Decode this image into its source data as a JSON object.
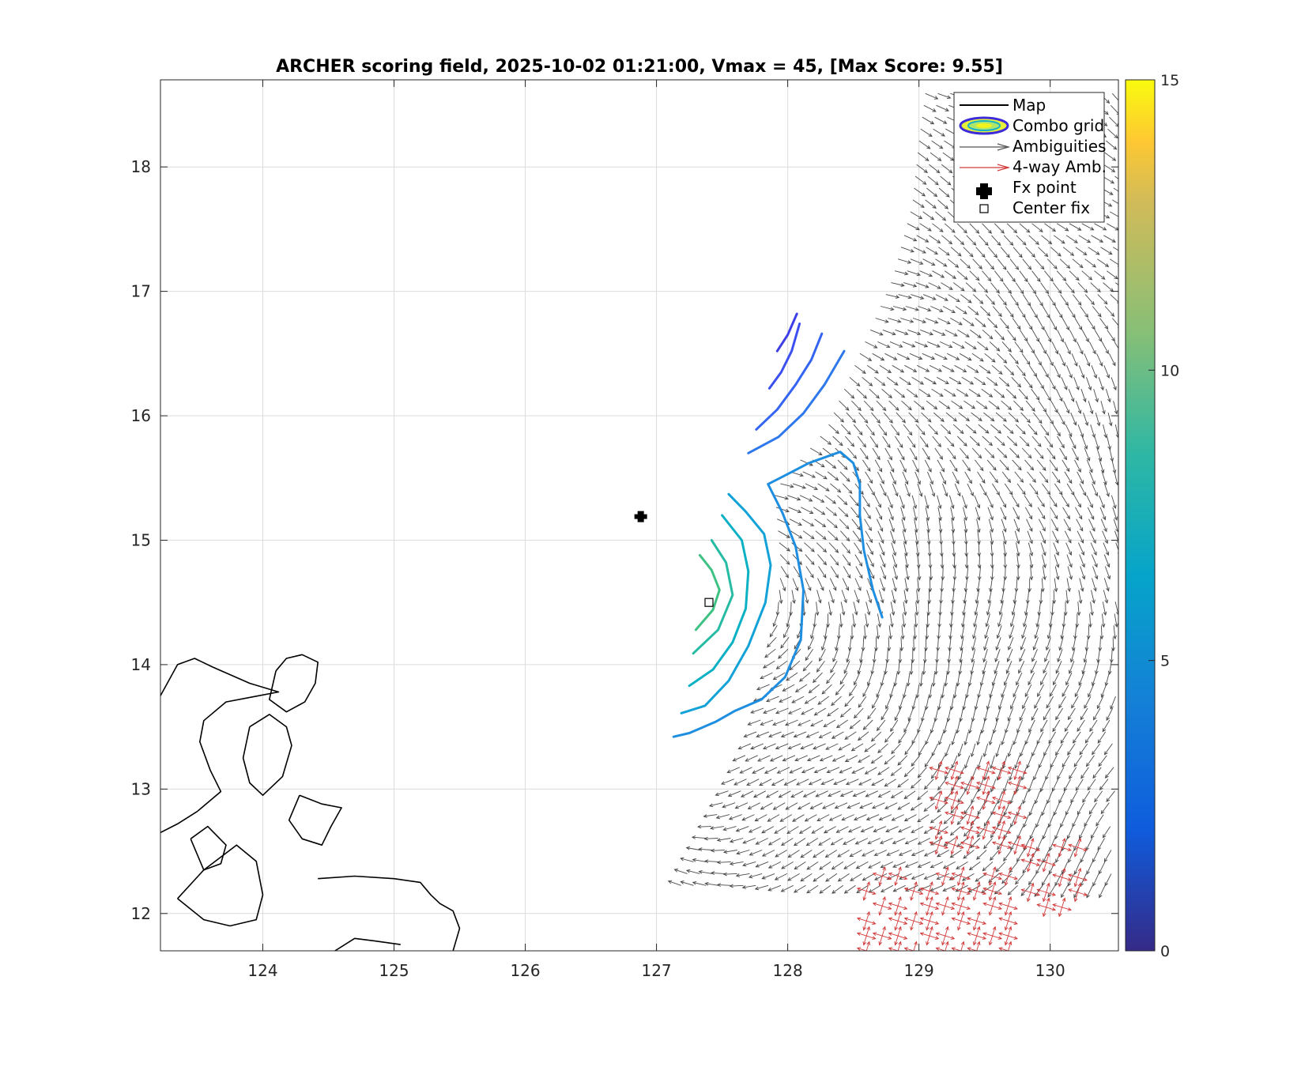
{
  "chart_data": {
    "type": "map-scoring-field",
    "title": "ARCHER scoring field, 2025-10-02 01:21:00, Vmax = 45, [Max Score: 9.55]",
    "xlim": [
      123.22,
      130.52
    ],
    "ylim": [
      11.7,
      18.7
    ],
    "x_ticks": [
      "124",
      "125",
      "126",
      "127",
      "128",
      "129",
      "130"
    ],
    "y_ticks": [
      "12",
      "13",
      "14",
      "15",
      "16",
      "17",
      "18"
    ],
    "grid": true,
    "colorbar": {
      "ticks": [
        "0",
        "5",
        "10",
        "15"
      ],
      "range": [
        0,
        15
      ],
      "colormap": "parula"
    },
    "legend": {
      "location": "top-right",
      "entries": [
        {
          "label": "Map",
          "symbol": "line",
          "color": "#000000"
        },
        {
          "label": "Combo grid",
          "symbol": "contour",
          "color": "#3d2bd9"
        },
        {
          "label": "Ambiguities",
          "symbol": "arrow",
          "color": "#555555"
        },
        {
          "label": "4-way Amb.",
          "symbol": "arrow",
          "color": "#d23a3a"
        },
        {
          "label": "Fx point",
          "symbol": "plus",
          "color": "#000000"
        },
        {
          "label": "Center fix",
          "symbol": "square",
          "color": "#000000"
        }
      ]
    },
    "fx_point": {
      "lon": 126.88,
      "lat": 15.19
    },
    "center_fix": {
      "lon": 127.4,
      "lat": 14.5
    },
    "contours": [
      {
        "level": 2.5,
        "color": "#3e3ee6",
        "points": [
          [
            127.92,
            16.52
          ],
          [
            128.0,
            16.65
          ],
          [
            128.07,
            16.82
          ]
        ]
      },
      {
        "level": 3.2,
        "color": "#3c4ff0",
        "points": [
          [
            127.86,
            16.22
          ],
          [
            127.95,
            16.35
          ],
          [
            128.03,
            16.52
          ],
          [
            128.09,
            16.74
          ]
        ]
      },
      {
        "level": 3.9,
        "color": "#3364f2",
        "points": [
          [
            127.76,
            15.89
          ],
          [
            127.92,
            16.05
          ],
          [
            128.06,
            16.25
          ],
          [
            128.18,
            16.45
          ],
          [
            128.26,
            16.66
          ]
        ]
      },
      {
        "level": 4.6,
        "color": "#2e78ec",
        "points": [
          [
            127.7,
            15.7
          ],
          [
            127.93,
            15.83
          ],
          [
            128.12,
            16.02
          ],
          [
            128.28,
            16.25
          ],
          [
            128.43,
            16.52
          ]
        ]
      },
      {
        "level": 5.2,
        "color": "#1e8ee0",
        "points": [
          [
            127.13,
            13.42
          ],
          [
            127.25,
            13.45
          ],
          [
            127.45,
            13.54
          ],
          [
            127.6,
            13.63
          ],
          [
            127.8,
            13.72
          ],
          [
            127.98,
            13.9
          ],
          [
            128.1,
            14.2
          ],
          [
            128.12,
            14.6
          ],
          [
            128.06,
            14.95
          ],
          [
            127.96,
            15.22
          ],
          [
            127.85,
            15.45
          ],
          [
            127.96,
            15.51
          ],
          [
            128.16,
            15.62
          ],
          [
            128.4,
            15.71
          ],
          [
            128.5,
            15.62
          ],
          [
            128.55,
            15.45
          ],
          [
            128.55,
            15.2
          ],
          [
            128.58,
            14.92
          ],
          [
            128.65,
            14.6
          ],
          [
            128.72,
            14.38
          ]
        ]
      },
      {
        "level": 5.9,
        "color": "#12a2d8",
        "points": [
          [
            127.19,
            13.61
          ],
          [
            127.37,
            13.67
          ],
          [
            127.55,
            13.87
          ],
          [
            127.7,
            14.15
          ],
          [
            127.83,
            14.5
          ],
          [
            127.87,
            14.8
          ],
          [
            127.82,
            15.05
          ],
          [
            127.68,
            15.23
          ],
          [
            127.55,
            15.37
          ]
        ]
      },
      {
        "level": 6.6,
        "color": "#0ab0c4",
        "points": [
          [
            127.25,
            13.83
          ],
          [
            127.43,
            13.96
          ],
          [
            127.58,
            14.18
          ],
          [
            127.68,
            14.45
          ],
          [
            127.7,
            14.75
          ],
          [
            127.65,
            15.0
          ],
          [
            127.5,
            15.2
          ]
        ]
      },
      {
        "level": 7.4,
        "color": "#27bba4",
        "points": [
          [
            127.28,
            14.09
          ],
          [
            127.47,
            14.28
          ],
          [
            127.58,
            14.56
          ],
          [
            127.53,
            14.82
          ],
          [
            127.42,
            15.0
          ]
        ]
      },
      {
        "level": 8.3,
        "color": "#3ec283",
        "points": [
          [
            127.3,
            14.28
          ],
          [
            127.43,
            14.44
          ],
          [
            127.48,
            14.6
          ],
          [
            127.42,
            14.76
          ],
          [
            127.33,
            14.88
          ]
        ]
      }
    ],
    "coastline_segments": [
      [
        [
          123.22,
          13.75
        ],
        [
          123.35,
          14.0
        ],
        [
          123.48,
          14.05
        ],
        [
          123.62,
          13.98
        ],
        [
          123.9,
          13.85
        ],
        [
          124.12,
          13.78
        ],
        [
          123.92,
          13.74
        ],
        [
          123.72,
          13.7
        ],
        [
          123.55,
          13.55
        ],
        [
          123.52,
          13.38
        ],
        [
          123.6,
          13.15
        ],
        [
          123.68,
          12.98
        ],
        [
          123.5,
          12.82
        ],
        [
          123.35,
          12.72
        ],
        [
          123.22,
          12.65
        ]
      ],
      [
        [
          124.1,
          13.95
        ],
        [
          124.18,
          14.05
        ],
        [
          124.3,
          14.08
        ],
        [
          124.42,
          14.02
        ],
        [
          124.4,
          13.85
        ],
        [
          124.32,
          13.7
        ],
        [
          124.18,
          13.62
        ],
        [
          124.05,
          13.72
        ],
        [
          124.1,
          13.95
        ]
      ],
      [
        [
          123.35,
          12.12
        ],
        [
          123.55,
          12.35
        ],
        [
          123.8,
          12.55
        ],
        [
          123.95,
          12.42
        ],
        [
          124.0,
          12.15
        ],
        [
          123.95,
          11.95
        ],
        [
          123.75,
          11.9
        ],
        [
          123.55,
          11.95
        ],
        [
          123.35,
          12.12
        ]
      ],
      [
        [
          123.9,
          13.5
        ],
        [
          124.05,
          13.6
        ],
        [
          124.18,
          13.5
        ],
        [
          124.22,
          13.35
        ],
        [
          124.15,
          13.1
        ],
        [
          124.0,
          12.95
        ],
        [
          123.9,
          13.05
        ],
        [
          123.85,
          13.25
        ],
        [
          123.9,
          13.5
        ]
      ],
      [
        [
          124.28,
          12.95
        ],
        [
          124.45,
          12.88
        ],
        [
          124.6,
          12.85
        ],
        [
          124.52,
          12.7
        ],
        [
          124.45,
          12.55
        ],
        [
          124.3,
          12.6
        ],
        [
          124.2,
          12.75
        ],
        [
          124.28,
          12.95
        ]
      ],
      [
        [
          123.45,
          12.6
        ],
        [
          123.58,
          12.7
        ],
        [
          123.72,
          12.55
        ],
        [
          123.68,
          12.4
        ],
        [
          123.55,
          12.35
        ],
        [
          123.45,
          12.6
        ]
      ],
      [
        [
          124.42,
          12.28
        ],
        [
          124.7,
          12.3
        ],
        [
          125.0,
          12.28
        ],
        [
          125.2,
          12.25
        ],
        [
          125.28,
          12.15
        ],
        [
          125.35,
          12.08
        ],
        [
          125.45,
          12.02
        ],
        [
          125.5,
          11.88
        ],
        [
          125.45,
          11.7
        ]
      ],
      [
        [
          124.55,
          11.7
        ],
        [
          124.7,
          11.8
        ],
        [
          124.85,
          11.78
        ],
        [
          125.05,
          11.75
        ]
      ]
    ],
    "wind_field": {
      "description": "gridded ambiguity wind vectors east of 127.3E",
      "domain_west_edge": [
        [
          127.15,
          12.15
        ],
        [
          127.35,
          12.55
        ],
        [
          127.6,
          13.1
        ],
        [
          127.78,
          13.5
        ],
        [
          127.9,
          14.0
        ],
        [
          127.95,
          14.8
        ],
        [
          127.9,
          15.4
        ],
        [
          128.3,
          15.9
        ],
        [
          128.55,
          16.5
        ],
        [
          128.8,
          17.1
        ],
        [
          128.95,
          17.7
        ],
        [
          129.0,
          18.2
        ],
        [
          129.05,
          18.6
        ]
      ],
      "four_way_regions": [
        {
          "lon": [
            129.15,
            129.85
          ],
          "lat": [
            12.55,
            13.25
          ]
        },
        {
          "lon": [
            128.6,
            129.8
          ],
          "lat": [
            11.7,
            12.35
          ]
        },
        {
          "lon": [
            129.85,
            130.3
          ],
          "lat": [
            12.05,
            12.55
          ]
        }
      ]
    }
  }
}
